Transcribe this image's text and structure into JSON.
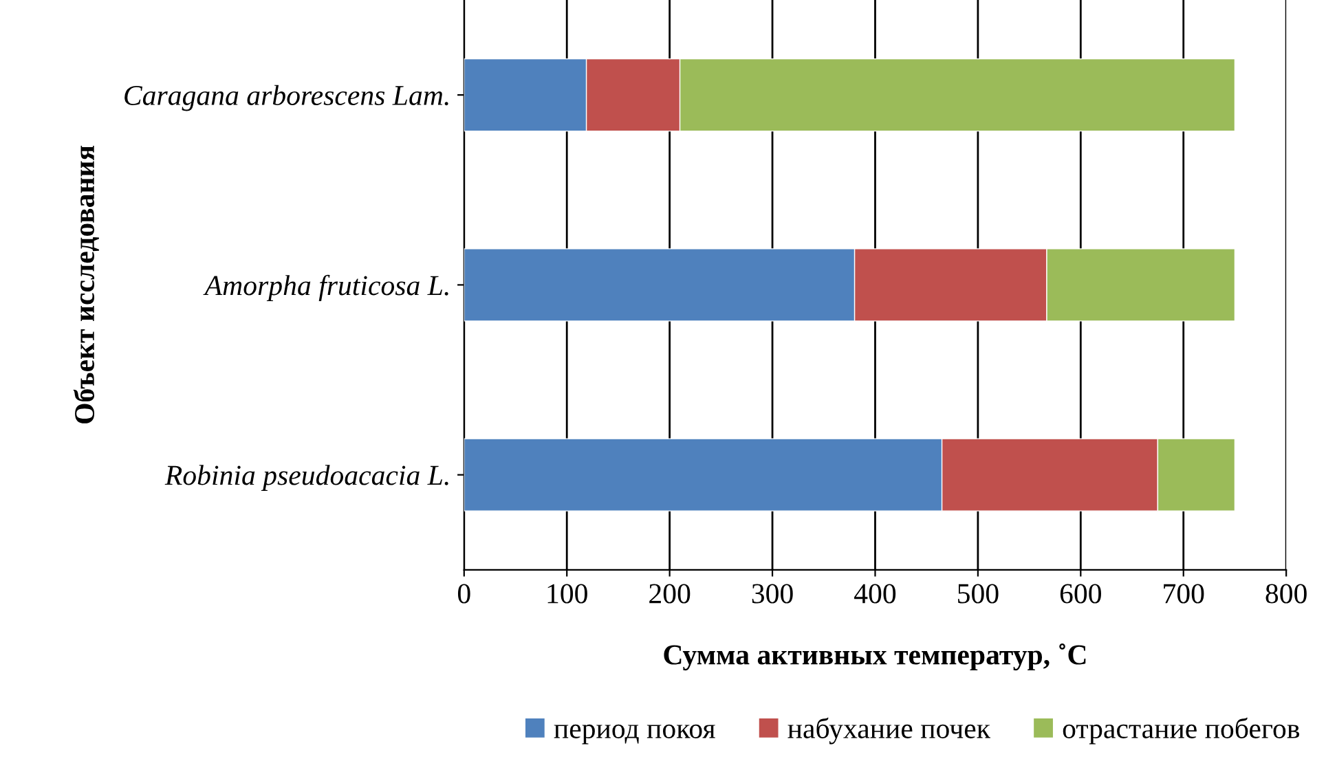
{
  "chart_data": {
    "type": "bar",
    "orientation": "horizontal",
    "stacked": true,
    "xlabel": "Сумма активных температур, ˚С",
    "ylabel": "Объект исследования",
    "categories": [
      "Caragana arborescens Lam.",
      "Amorpha fruticosa L.",
      "Robinia pseudoacacia L."
    ],
    "series": [
      {
        "name": "период покоя",
        "color": "#4f81bd",
        "values": [
          119,
          380,
          465
        ]
      },
      {
        "name": "набухание почек",
        "color": "#c0504d",
        "values": [
          91,
          187,
          210
        ]
      },
      {
        "name": "отрастание побегов",
        "color": "#9bbb59",
        "values": [
          540,
          183,
          75
        ]
      }
    ],
    "xlim": [
      0,
      800
    ],
    "xticks": [
      0,
      100,
      200,
      300,
      400,
      500,
      600,
      700,
      800
    ],
    "grid": "x",
    "legend": "bottom"
  }
}
